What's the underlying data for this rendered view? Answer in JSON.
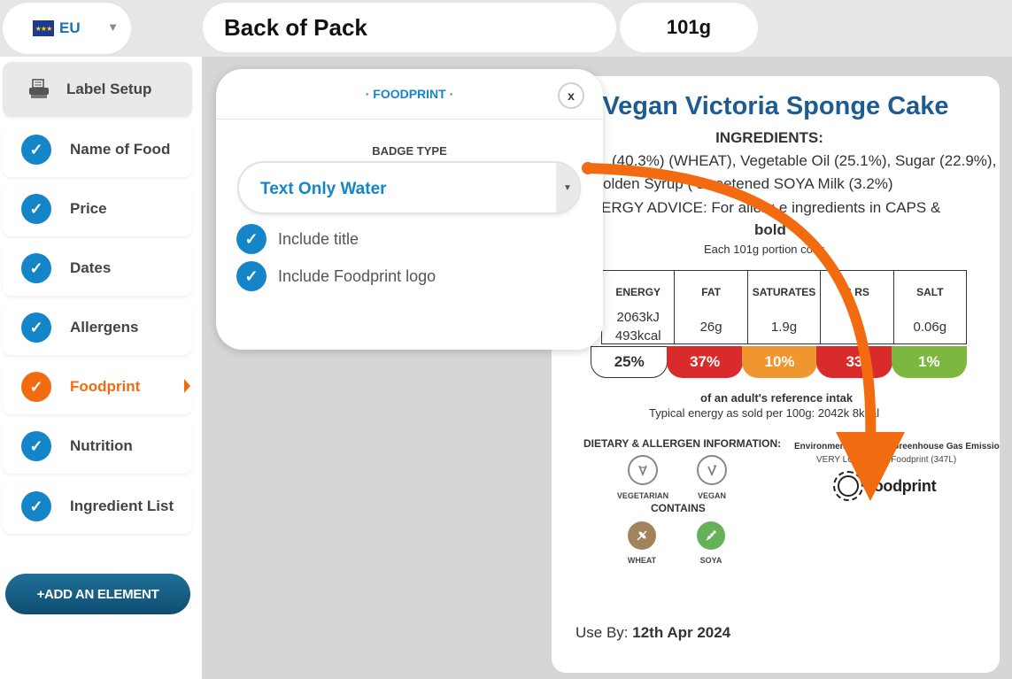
{
  "topbar": {
    "region": {
      "code": "EU",
      "flag_icon": "eu-flag-icon",
      "caret": "▼"
    },
    "label_name": "Back of Pack",
    "portion": "101g"
  },
  "sidebar": {
    "items": [
      {
        "label": "Label Setup",
        "icon": "label-printer-icon",
        "state": "setup"
      },
      {
        "label": "Name of Food",
        "icon": "check-icon",
        "state": "done"
      },
      {
        "label": "Price",
        "icon": "check-icon",
        "state": "done"
      },
      {
        "label": "Dates",
        "icon": "check-icon",
        "state": "done"
      },
      {
        "label": "Allergens",
        "icon": "check-icon",
        "state": "done"
      },
      {
        "label": "Foodprint",
        "icon": "check-icon",
        "state": "active"
      },
      {
        "label": "Nutrition",
        "icon": "check-icon",
        "state": "done"
      },
      {
        "label": "Ingredient List",
        "icon": "check-icon",
        "state": "done"
      }
    ],
    "add_button": "+ADD AN ELEMENT"
  },
  "popup": {
    "title": "· FOODPRINT ·",
    "close": "x",
    "badge_type_label": "BADGE TYPE",
    "badge_type_value": "Text Only Water",
    "badge_caret": "▼",
    "options": [
      {
        "label": "Include title",
        "checked": true
      },
      {
        "label": "Include Foodprint logo",
        "checked": true
      }
    ]
  },
  "label": {
    "product_name": "Vegan Victoria Sponge Cake",
    "ingredients_title": "INGREDIENTS:",
    "ingredients_lines": [
      "(40.3%) (WHEAT), Vegetable Oil (25.1%), Sugar (22.9%),",
      "olden Syrup (    sweetened SOYA Milk (3.2%)",
      "ERGY ADVICE: For allerg      e ingredients in CAPS &",
      "bold"
    ],
    "portion_text": "Each 101g portion co       s:",
    "nutrition": [
      {
        "name": "ENERGY",
        "value": "2063kJ",
        "value2": "493kcal",
        "pct": "25%",
        "color": "#ffffff"
      },
      {
        "name": "FAT",
        "value": "26g",
        "value2": "",
        "pct": "37%",
        "color": "#d92b2b"
      },
      {
        "name": "SATURATES",
        "value": "1.9g",
        "value2": "",
        "pct": "10%",
        "color": "#f0962e"
      },
      {
        "name": "S     RS",
        "value": "3",
        "value2": "",
        "pct": "33",
        "color": "#d92b2b"
      },
      {
        "name": "SALT",
        "value": "0.06g",
        "value2": "",
        "pct": "1%",
        "color": "#7cb83f"
      }
    ],
    "reference_intake": "of an adult's reference intak",
    "typical_energy": "Typical energy as sold per 100g: 2042k     8kcal",
    "dietary_title": "DIETARY & ALLERGEN INFORMATION:",
    "dietary": [
      {
        "label": "VEGETARIAN",
        "icon": "vegetarian-icon"
      },
      {
        "label": "VEGAN",
        "icon": "vegan-icon"
      }
    ],
    "contains_title": "CONTAINS",
    "contains": [
      {
        "label": "WHEAT",
        "icon": "wheat-icon",
        "color": "#a1845c"
      },
      {
        "label": "SOYA",
        "icon": "soya-icon",
        "color": "#66b05a"
      }
    ],
    "env_title": "Environmental Impact: Greenhouse Gas Emissions",
    "env_value": "VERY LOW Water Foodprint (347L)",
    "foodprint_logo_text": "foodprint",
    "use_by_label": "Use By:",
    "use_by_date": "12th Apr 2024"
  },
  "colors": {
    "accent_blue": "#1585c9",
    "active_orange": "#f26b11",
    "title_blue": "#1d5c91"
  }
}
